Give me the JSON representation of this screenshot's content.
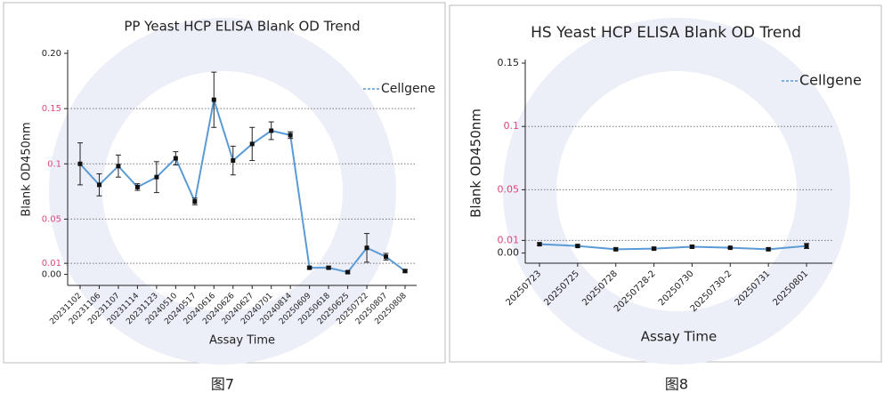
{
  "chart_data": [
    {
      "type": "line",
      "title": "PP Yeast HCP ELISA Blank OD Trend",
      "x_label": "Assay Time",
      "y_label": "Blank OD450nm",
      "categories": [
        "20231102",
        "20231106",
        "20231107",
        "20231114",
        "20231123",
        "20240510",
        "20240517",
        "20240616",
        "20240626",
        "20240627",
        "20240701",
        "20240814",
        "20250609",
        "20250618",
        "20250625",
        "20250722",
        "20250807",
        "20250808"
      ],
      "series": [
        {
          "name": "Cellgene",
          "color": "#5b9bd5",
          "values": [
            0.1,
            0.081,
            0.098,
            0.079,
            0.088,
            0.105,
            0.066,
            0.158,
            0.103,
            0.118,
            0.13,
            0.126,
            0.006,
            0.006,
            0.002,
            0.024,
            0.016,
            0.003
          ],
          "errors": [
            0.019,
            0.01,
            0.01,
            0.003,
            0.014,
            0.006,
            0.003,
            0.025,
            0.013,
            0.015,
            0.008,
            0.003,
            0.001,
            0.001,
            0.001,
            0.013,
            0.003,
            0.001
          ]
        }
      ],
      "ylim": [
        -0.01,
        0.2
      ],
      "yticks": [
        {
          "value": 0,
          "label": "0.00"
        },
        0.01,
        0.05,
        0.1,
        0.15,
        {
          "value": 0.2,
          "label": "0.20"
        }
      ],
      "grid": true,
      "legend": "upper right"
    },
    {
      "type": "line",
      "title": "HS Yeast HCP ELISA Blank OD Trend",
      "x_label": "Assay Time",
      "y_label": "Blank OD450nm",
      "categories": [
        "20250723",
        "20250725",
        "20250728",
        "20250728-2",
        "20250730",
        "20250730-2",
        "20250731",
        "20250801"
      ],
      "series": [
        {
          "name": "Cellgene",
          "color": "#5b9bd5",
          "values": [
            0.007,
            0.0056,
            0.003,
            0.0035,
            0.005,
            0.0042,
            0.003,
            0.0056
          ],
          "errors": [
            0.001,
            0.001,
            0.001,
            0.001,
            0.001,
            0.0005,
            0.001,
            0.002
          ]
        }
      ],
      "ylim": [
        -0.008,
        0.15
      ],
      "yticks": [
        {
          "value": 0,
          "label": "0.00"
        },
        0.01,
        0.05,
        0.1,
        0.15
      ],
      "grid": true,
      "legend": "upper right"
    }
  ],
  "captions": [
    "图7",
    "图8"
  ]
}
